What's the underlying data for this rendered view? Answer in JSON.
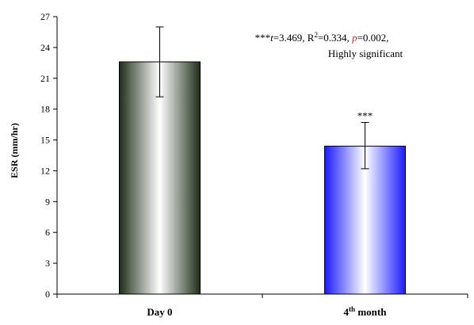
{
  "chart_data": {
    "type": "bar",
    "categories": [
      "Day 0",
      "4th month"
    ],
    "category_display": [
      {
        "base": "Day 0",
        "sup": "",
        "rest": ""
      },
      {
        "base": "4",
        "sup": "th",
        "rest": " month"
      }
    ],
    "values": [
      22.6,
      14.4
    ],
    "error_upper": [
      26.0,
      16.7
    ],
    "error_lower": [
      19.2,
      12.2
    ],
    "bar_gradients": [
      {
        "edge": "#1f2e1a",
        "center": "#ffffff"
      },
      {
        "edge": "#1a1aff",
        "center": "#ffffff"
      }
    ],
    "ylabel": "ESR (mm/hr)",
    "ylim": [
      0,
      27
    ],
    "yticks": [
      0,
      3,
      6,
      9,
      12,
      15,
      18,
      21,
      24,
      27
    ],
    "bar_annotations": [
      "",
      "***"
    ],
    "annotation": {
      "prefix": "***",
      "t_sym": "t",
      "t_val": "=3.469, R",
      "r_sup": "2",
      "r_val": "=0.334, ",
      "p_sym": "p",
      "p_val": "=0.002,",
      "line2": "Highly significant"
    },
    "grid": false,
    "legend": "none"
  }
}
